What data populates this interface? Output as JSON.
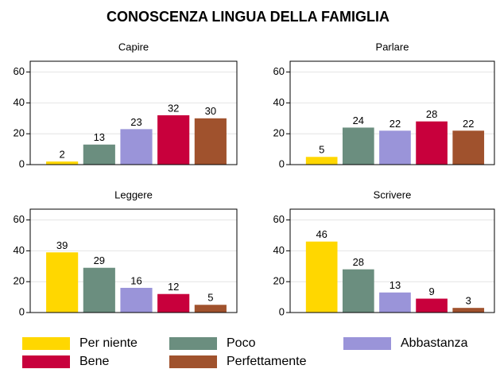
{
  "title": "CONOSCENZA LINGUA DELLA FAMIGLIA",
  "chart_data": [
    {
      "type": "bar",
      "title": "Capire",
      "ylim": [
        0,
        67
      ],
      "yticks": [
        0,
        20,
        40,
        60
      ],
      "grid": true,
      "series": [
        {
          "name": "Per niente",
          "color": "#ffd700",
          "values": [
            2
          ]
        },
        {
          "name": "Poco",
          "color": "#6b8e7f",
          "values": [
            13
          ]
        },
        {
          "name": "Abbastanza",
          "color": "#9a94d9",
          "values": [
            23
          ]
        },
        {
          "name": "Bene",
          "color": "#c8003c",
          "values": [
            32
          ]
        },
        {
          "name": "Perfettamente",
          "color": "#a0522d",
          "values": [
            30
          ]
        }
      ]
    },
    {
      "type": "bar",
      "title": "Parlare",
      "ylim": [
        0,
        67
      ],
      "yticks": [
        0,
        20,
        40,
        60
      ],
      "grid": true,
      "series": [
        {
          "name": "Per niente",
          "color": "#ffd700",
          "values": [
            5
          ]
        },
        {
          "name": "Poco",
          "color": "#6b8e7f",
          "values": [
            24
          ]
        },
        {
          "name": "Abbastanza",
          "color": "#9a94d9",
          "values": [
            22
          ]
        },
        {
          "name": "Bene",
          "color": "#c8003c",
          "values": [
            28
          ]
        },
        {
          "name": "Perfettamente",
          "color": "#a0522d",
          "values": [
            22
          ]
        }
      ]
    },
    {
      "type": "bar",
      "title": "Leggere",
      "ylim": [
        0,
        67
      ],
      "yticks": [
        0,
        20,
        40,
        60
      ],
      "grid": true,
      "series": [
        {
          "name": "Per niente",
          "color": "#ffd700",
          "values": [
            39
          ]
        },
        {
          "name": "Poco",
          "color": "#6b8e7f",
          "values": [
            29
          ]
        },
        {
          "name": "Abbastanza",
          "color": "#9a94d9",
          "values": [
            16
          ]
        },
        {
          "name": "Bene",
          "color": "#c8003c",
          "values": [
            12
          ]
        },
        {
          "name": "Perfettamente",
          "color": "#a0522d",
          "values": [
            5
          ]
        }
      ]
    },
    {
      "type": "bar",
      "title": "Scrivere",
      "ylim": [
        0,
        67
      ],
      "yticks": [
        0,
        20,
        40,
        60
      ],
      "grid": true,
      "series": [
        {
          "name": "Per niente",
          "color": "#ffd700",
          "values": [
            46
          ]
        },
        {
          "name": "Poco",
          "color": "#6b8e7f",
          "values": [
            28
          ]
        },
        {
          "name": "Abbastanza",
          "color": "#9a94d9",
          "values": [
            13
          ]
        },
        {
          "name": "Bene",
          "color": "#c8003c",
          "values": [
            9
          ]
        },
        {
          "name": "Perfettamente",
          "color": "#a0522d",
          "values": [
            3
          ]
        }
      ]
    }
  ]
}
